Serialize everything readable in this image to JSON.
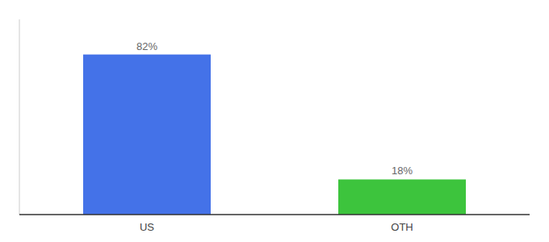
{
  "chart_data": {
    "type": "bar",
    "categories": [
      "US",
      "OTH"
    ],
    "values": [
      82,
      18
    ],
    "value_labels": [
      "82%",
      "18%"
    ],
    "colors": [
      "#4472e8",
      "#3dc43d"
    ],
    "ylim": [
      0,
      100
    ],
    "data_labels": true,
    "tick_labels": "x"
  }
}
